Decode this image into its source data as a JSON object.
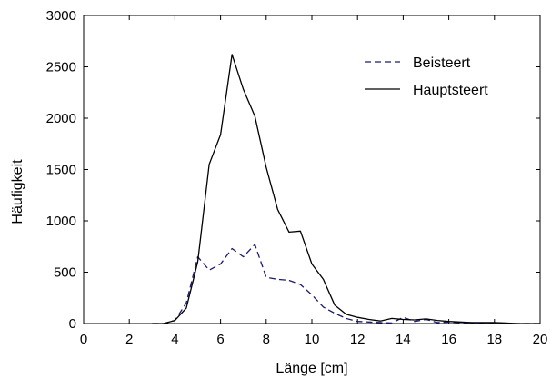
{
  "chart_data": {
    "type": "line",
    "title": "",
    "xlabel": "Länge [cm]",
    "ylabel": "Häufigkeit",
    "xlim": [
      0,
      20
    ],
    "ylim": [
      0,
      3000
    ],
    "x_ticks": [
      0,
      2,
      4,
      6,
      8,
      10,
      12,
      14,
      16,
      18,
      20
    ],
    "y_ticks": [
      0,
      500,
      1000,
      1500,
      2000,
      2500,
      3000
    ],
    "x_tick_labels": [
      "0",
      "2",
      "4",
      "6",
      "8",
      "10",
      "12",
      "14",
      "16",
      "18",
      "20"
    ],
    "y_tick_labels": [
      "0",
      "500",
      "1000",
      "1500",
      "2000",
      "2500",
      "3000"
    ],
    "grid": false,
    "legend_position": "top-right",
    "series": [
      {
        "name": "Beisteert",
        "style": "dashed",
        "color": "#1a1a6e",
        "x": [
          3.0,
          3.5,
          4.0,
          4.5,
          5.0,
          5.5,
          6.0,
          6.5,
          7.0,
          7.5,
          8.0,
          8.5,
          9.0,
          9.5,
          10.0,
          10.5,
          11.0,
          11.5,
          12.0,
          12.5,
          13.0,
          13.5,
          14.0,
          14.5,
          15.0,
          15.5,
          16.0,
          16.5,
          17.0,
          17.5,
          18.0,
          18.5,
          19.0,
          19.5,
          20.0
        ],
        "y": [
          0,
          0,
          30,
          200,
          650,
          520,
          580,
          730,
          650,
          770,
          450,
          430,
          420,
          380,
          280,
          160,
          100,
          50,
          20,
          15,
          10,
          5,
          60,
          20,
          40,
          10,
          15,
          10,
          5,
          5,
          5,
          0,
          0,
          0,
          0
        ]
      },
      {
        "name": "Hauptsteert",
        "style": "solid",
        "color": "#000000",
        "x": [
          3.0,
          3.5,
          4.0,
          4.5,
          5.0,
          5.5,
          6.0,
          6.5,
          7.0,
          7.5,
          8.0,
          8.5,
          9.0,
          9.5,
          10.0,
          10.5,
          11.0,
          11.5,
          12.0,
          12.5,
          13.0,
          13.5,
          14.0,
          14.5,
          15.0,
          15.5,
          16.0,
          16.5,
          17.0,
          17.5,
          18.0,
          18.5,
          19.0,
          19.5,
          20.0
        ],
        "y": [
          0,
          0,
          30,
          150,
          600,
          1550,
          1840,
          2620,
          2280,
          2020,
          1520,
          1110,
          890,
          900,
          580,
          430,
          180,
          90,
          60,
          40,
          25,
          50,
          40,
          35,
          45,
          30,
          20,
          15,
          10,
          10,
          10,
          5,
          0,
          0,
          0
        ]
      }
    ]
  }
}
